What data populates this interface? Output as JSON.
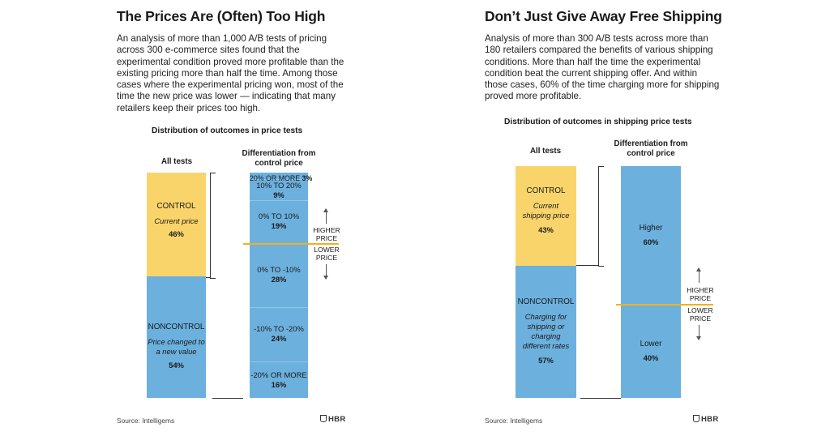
{
  "colors": {
    "control": "#f8d46b",
    "noncontrol": "#6cb0de",
    "divider": "#f0b418"
  },
  "chart_data": [
    {
      "type": "stacked-bar",
      "title": "The Prices Are (Often) Too High",
      "description": "An analysis of more than 1,000 A/B tests of pricing across 300 e-commerce sites found that the experimental condition proved more profitable than the existing pricing more than half the time. Among those cases where the experimental pricing won, most of the time the new price was lower — indicating that many retailers keep their prices too high.",
      "subtitle": "Distribution of outcomes in price tests",
      "source": "Source: Intelligems",
      "logo": "HBR",
      "all_tests": {
        "header": "All tests",
        "segments": [
          {
            "name": "CONTROL",
            "desc": "Current price",
            "value": 46,
            "label": "46%"
          },
          {
            "name": "NONCONTROL",
            "desc": "Price changed to a new value",
            "value": 54,
            "label": "54%"
          }
        ]
      },
      "differentiation": {
        "header": "Differentiation from control price",
        "segments": [
          {
            "name": "20% OR MORE",
            "value": 3,
            "label": "3%"
          },
          {
            "name": "10% TO 20%",
            "value": 9,
            "label": "9%"
          },
          {
            "name": "0% TO 10%",
            "value": 19,
            "label": "19%"
          },
          {
            "name": "0% TO -10%",
            "value": 28,
            "label": "28%"
          },
          {
            "name": "-10% TO -20%",
            "value": 24,
            "label": "24%"
          },
          {
            "name": "-20% OR MORE",
            "value": 16,
            "label": "16%"
          }
        ]
      },
      "arrows": {
        "higher": "HIGHER PRICE",
        "lower": "LOWER PRICE"
      }
    },
    {
      "type": "stacked-bar",
      "title": "Don’t Just Give Away Free Shipping",
      "description": "Analysis of more than 300 A/B tests across more than 180 retailers compared the benefits of various shipping conditions. More than half the time the experimental condition beat the current shipping offer. And within those cases, 60% of the time charging more for shipping proved more profitable.",
      "subtitle": "Distribution of outcomes in shipping price tests",
      "source": "Source: Intelligems",
      "logo": "HBR",
      "all_tests": {
        "header": "All tests",
        "segments": [
          {
            "name": "CONTROL",
            "desc": "Current shipping price",
            "value": 43,
            "label": "43%"
          },
          {
            "name": "NONCONTROL",
            "desc": "Charging for shipping or charging different rates",
            "value": 57,
            "label": "57%"
          }
        ]
      },
      "differentiation": {
        "header": "Differentiation from control price",
        "segments": [
          {
            "name": "Higher",
            "value": 60,
            "label": "60%"
          },
          {
            "name": "Lower",
            "value": 40,
            "label": "40%"
          }
        ]
      },
      "arrows": {
        "higher": "HIGHER PRICE",
        "lower": "LOWER PRICE"
      }
    }
  ]
}
